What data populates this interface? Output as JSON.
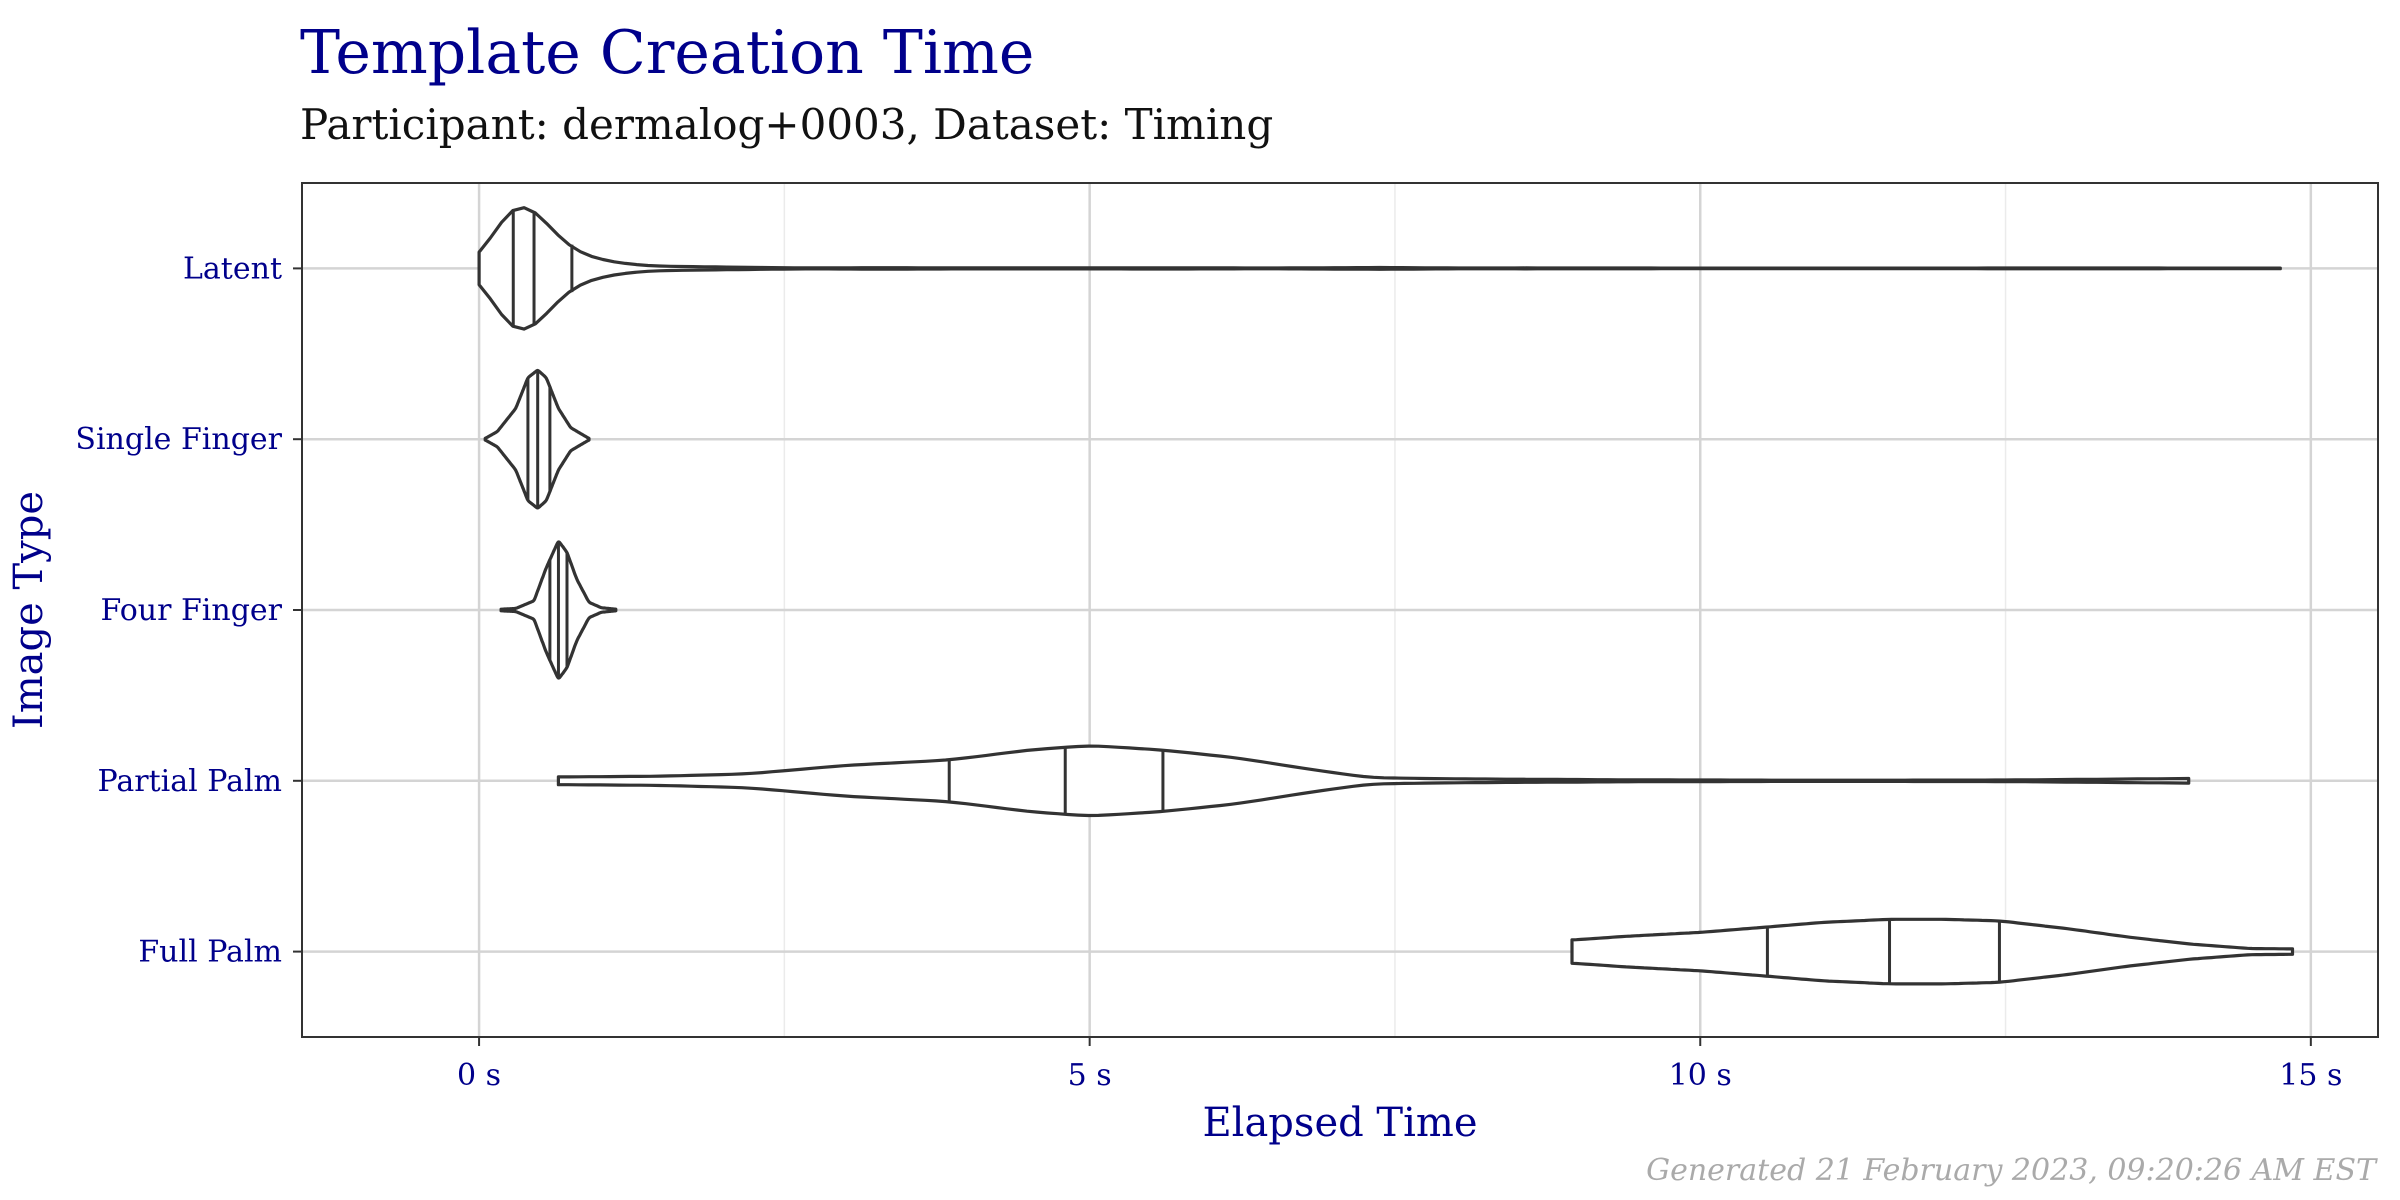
{
  "chart_data": {
    "type": "violin",
    "orientation": "horizontal",
    "title": "Template Creation Time",
    "subtitle": "Participant: dermalog+0003, Dataset: Timing",
    "xlabel": "Elapsed Time",
    "ylabel": "Image Type",
    "caption": "Generated 21 February 2023, 09:20:26 AM EST",
    "xlim": [
      -1.45,
      15.55
    ],
    "x_ticks": [
      0,
      5,
      10,
      15
    ],
    "x_tick_labels": [
      "0 s",
      "5 s",
      "10 s",
      "15 s"
    ],
    "grid": true,
    "categories": [
      "Latent",
      "Single Finger",
      "Four Finger",
      "Partial Palm",
      "Full Palm"
    ],
    "series": [
      {
        "category": "Latent",
        "min": 0.0,
        "max": 14.75,
        "quartiles": [
          0.28,
          0.45,
          0.76
        ],
        "density": [
          [
            0.0,
            0.08
          ],
          [
            0.15,
            0.58
          ],
          [
            0.3,
            0.9
          ],
          [
            0.4,
            0.87
          ],
          [
            0.55,
            0.6
          ],
          [
            0.7,
            0.3
          ],
          [
            0.9,
            0.15
          ],
          [
            1.1,
            0.08
          ],
          [
            1.4,
            0.03
          ],
          [
            1.9,
            0.02
          ],
          [
            2.3,
            0.012
          ],
          [
            2.7,
            0.006
          ],
          [
            3.3,
            0.01
          ],
          [
            4.0,
            0.006
          ],
          [
            5.0,
            0.006
          ],
          [
            5.6,
            0.008
          ],
          [
            6.5,
            0.005
          ],
          [
            7.4,
            0.012
          ],
          [
            8.0,
            0.005
          ],
          [
            8.6,
            0.006
          ],
          [
            10.0,
            0.004
          ],
          [
            12.0,
            0.004
          ],
          [
            13.1,
            0.006
          ],
          [
            14.0,
            0.004
          ],
          [
            14.75,
            0.004
          ]
        ]
      },
      {
        "category": "Single Finger",
        "min": 0.05,
        "max": 0.9,
        "quartiles": [
          0.4,
          0.48,
          0.58
        ],
        "density": [
          [
            0.05,
            0.01
          ],
          [
            0.15,
            0.1
          ],
          [
            0.3,
            0.4
          ],
          [
            0.4,
            0.8
          ],
          [
            0.48,
            0.9
          ],
          [
            0.55,
            0.8
          ],
          [
            0.65,
            0.4
          ],
          [
            0.75,
            0.15
          ],
          [
            0.9,
            0.01
          ]
        ]
      },
      {
        "category": "Four Finger",
        "min": 0.18,
        "max": 1.12,
        "quartiles": [
          0.58,
          0.65,
          0.72
        ],
        "density": [
          [
            0.18,
            0.01
          ],
          [
            0.3,
            0.02
          ],
          [
            0.45,
            0.12
          ],
          [
            0.55,
            0.55
          ],
          [
            0.65,
            0.9
          ],
          [
            0.72,
            0.75
          ],
          [
            0.8,
            0.4
          ],
          [
            0.9,
            0.1
          ],
          [
            1.0,
            0.03
          ],
          [
            1.12,
            0.01
          ]
        ]
      },
      {
        "category": "Partial Palm",
        "min": 0.65,
        "max": 14.0,
        "quartiles": [
          3.85,
          4.8,
          5.6
        ],
        "density": [
          [
            0.65,
            0.05
          ],
          [
            1.5,
            0.06
          ],
          [
            2.2,
            0.09
          ],
          [
            3.0,
            0.2
          ],
          [
            3.85,
            0.27
          ],
          [
            4.5,
            0.4
          ],
          [
            5.0,
            0.46
          ],
          [
            5.6,
            0.4
          ],
          [
            6.2,
            0.3
          ],
          [
            6.8,
            0.15
          ],
          [
            7.3,
            0.04
          ],
          [
            8.0,
            0.025
          ],
          [
            9.5,
            0.012
          ],
          [
            11.0,
            0.007
          ],
          [
            12.5,
            0.01
          ],
          [
            14.0,
            0.03
          ]
        ]
      },
      {
        "category": "Full Palm",
        "min": 8.95,
        "max": 14.85,
        "quartiles": [
          10.55,
          11.55,
          12.45
        ],
        "density": [
          [
            8.95,
            0.15
          ],
          [
            9.4,
            0.2
          ],
          [
            10.0,
            0.25
          ],
          [
            10.55,
            0.32
          ],
          [
            11.0,
            0.38
          ],
          [
            11.55,
            0.42
          ],
          [
            12.0,
            0.42
          ],
          [
            12.45,
            0.4
          ],
          [
            13.0,
            0.3
          ],
          [
            13.5,
            0.19
          ],
          [
            14.0,
            0.1
          ],
          [
            14.5,
            0.04
          ],
          [
            14.85,
            0.035
          ]
        ]
      }
    ]
  }
}
